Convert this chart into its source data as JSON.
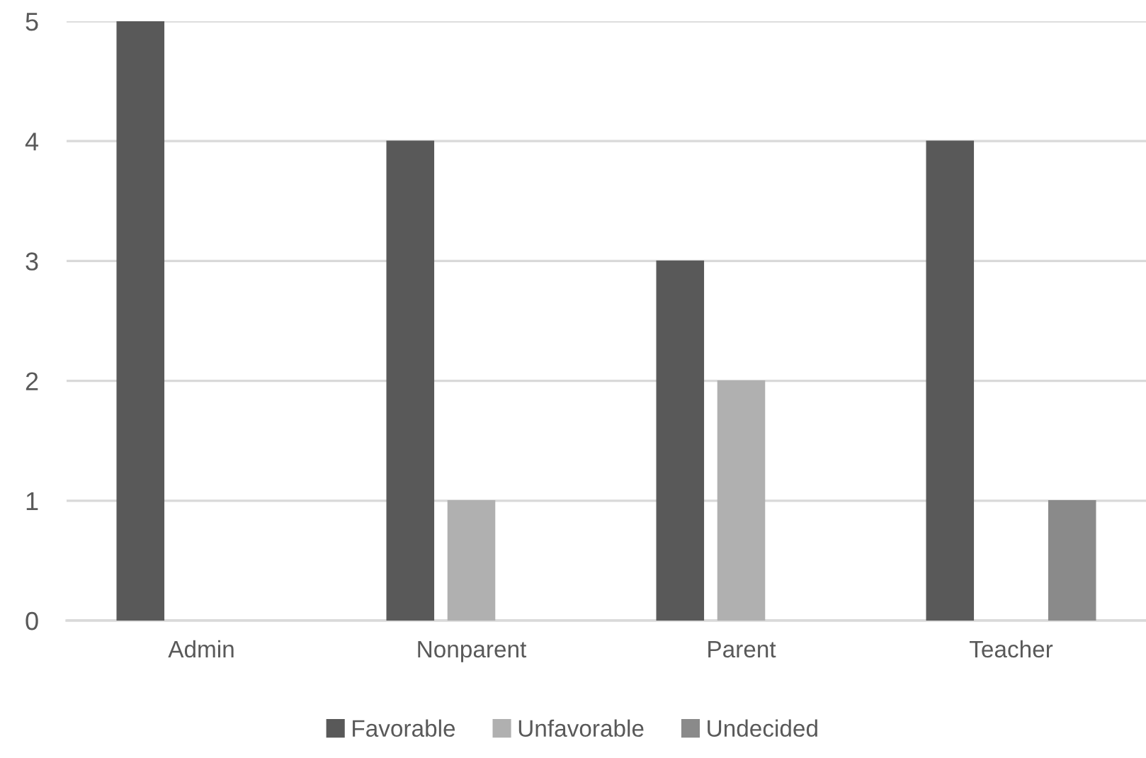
{
  "chart_data": {
    "type": "bar",
    "categories": [
      "Admin",
      "Nonparent",
      "Parent",
      "Teacher"
    ],
    "series": [
      {
        "name": "Favorable",
        "color": "#595959",
        "values": [
          5,
          4,
          3,
          4
        ]
      },
      {
        "name": "Unfavorable",
        "color": "#b0b0b0",
        "values": [
          null,
          1,
          2,
          null
        ]
      },
      {
        "name": "Undecided",
        "color": "#8a8a8a",
        "values": [
          null,
          null,
          null,
          1
        ]
      }
    ],
    "ylim": [
      0,
      5
    ],
    "yticks": [
      0,
      1,
      2,
      3,
      4,
      5
    ],
    "grid": "y",
    "legend": "bottom"
  }
}
